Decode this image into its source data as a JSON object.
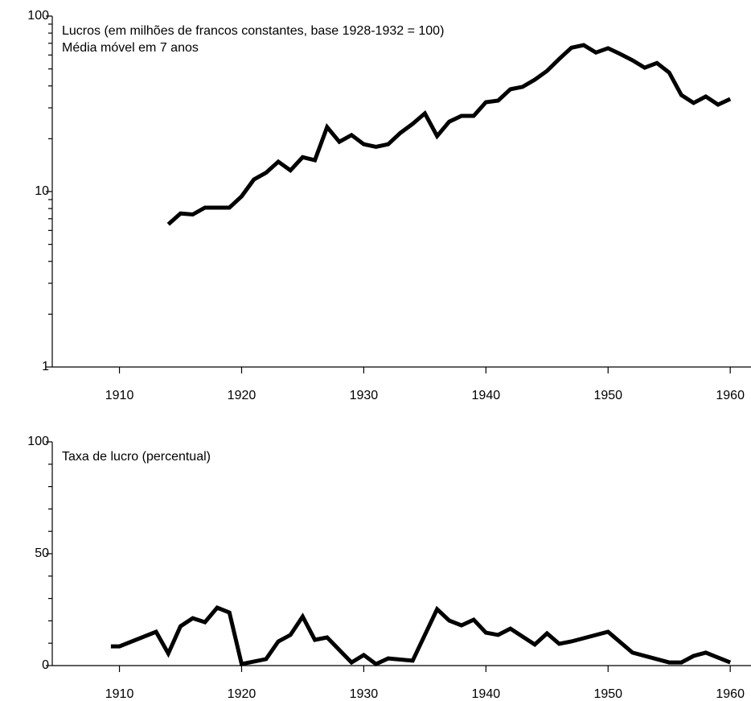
{
  "chart_data": [
    {
      "type": "line",
      "title": "Lucros (em milhões de francos constantes, base 1928-1932 = 100)",
      "subtitle": "Média móvel em 7 anos",
      "yscale": "log",
      "color": "#000000",
      "x": [
        1914,
        1915,
        1916,
        1917,
        1918,
        1919,
        1920,
        1921,
        1922,
        1923,
        1924,
        1925,
        1926,
        1927,
        1928,
        1929,
        1930,
        1931,
        1932,
        1933,
        1934,
        1935,
        1936,
        1937,
        1938,
        1939,
        1940,
        1941,
        1942,
        1943,
        1944,
        1945,
        1946,
        1947,
        1948,
        1949,
        1950,
        1951,
        1952,
        1953,
        1954,
        1955,
        1956,
        1957,
        1958,
        1959,
        1960
      ],
      "values": [
        6.5,
        7.5,
        7.4,
        8.1,
        8.1,
        8.1,
        9.4,
        11.7,
        12.8,
        14.8,
        13.2,
        15.7,
        15.1,
        23.3,
        19.2,
        21,
        18.6,
        18,
        18.6,
        21.6,
        24.3,
        27.9,
        20.7,
        25,
        27,
        27,
        32.3,
        33,
        38.3,
        39.5,
        43.4,
        48.7,
        57,
        66,
        68.4,
        62,
        65.6,
        60.8,
        56,
        50.8,
        54,
        47.7,
        35.5,
        32,
        34.8,
        31.3,
        33.7
      ],
      "xlim": [
        1904.5,
        1961.7
      ],
      "xticks": [
        1910,
        1920,
        1930,
        1940,
        1950,
        1960
      ],
      "ylim": [
        1,
        100
      ],
      "yticks": [
        1,
        10,
        100
      ],
      "yminorticks": [
        2,
        3,
        4,
        5,
        6,
        7,
        8,
        9,
        20,
        30,
        40,
        50,
        60,
        70,
        80,
        90
      ]
    },
    {
      "type": "line",
      "title": "Taxa de lucro (percentual)",
      "color": "#000000",
      "x": [
        1909.3,
        1910,
        1913,
        1914,
        1915,
        1916,
        1917,
        1918,
        1919,
        1920,
        1922,
        1923,
        1924,
        1925,
        1926,
        1927,
        1929,
        1930,
        1931,
        1932,
        1934,
        1936,
        1937,
        1938,
        1939,
        1940,
        1941,
        1942,
        1944,
        1945,
        1946,
        1947,
        1950,
        1952,
        1955,
        1956,
        1957,
        1958,
        1960
      ],
      "values": [
        8.6,
        8.6,
        15.1,
        5.4,
        17.6,
        21.2,
        19.4,
        25.9,
        23.7,
        0.7,
        2.9,
        10.8,
        13.7,
        21.9,
        11.5,
        12.6,
        1.4,
        4.7,
        0.7,
        3.2,
        2.2,
        25.2,
        20.1,
        18,
        20.5,
        14.7,
        13.7,
        16.5,
        9.4,
        14.4,
        9.7,
        10.8,
        15.1,
        5.8,
        1.4,
        1.4,
        4.3,
        5.8,
        1.4
      ],
      "xlim": [
        1904.5,
        1961.7
      ],
      "xticks": [
        1910,
        1920,
        1930,
        1940,
        1950,
        1960
      ],
      "ylim": [
        0,
        100
      ],
      "yticks": [
        0,
        50,
        100
      ],
      "yminorticks": [
        10,
        20,
        30,
        40,
        60,
        70,
        80,
        90
      ]
    }
  ]
}
